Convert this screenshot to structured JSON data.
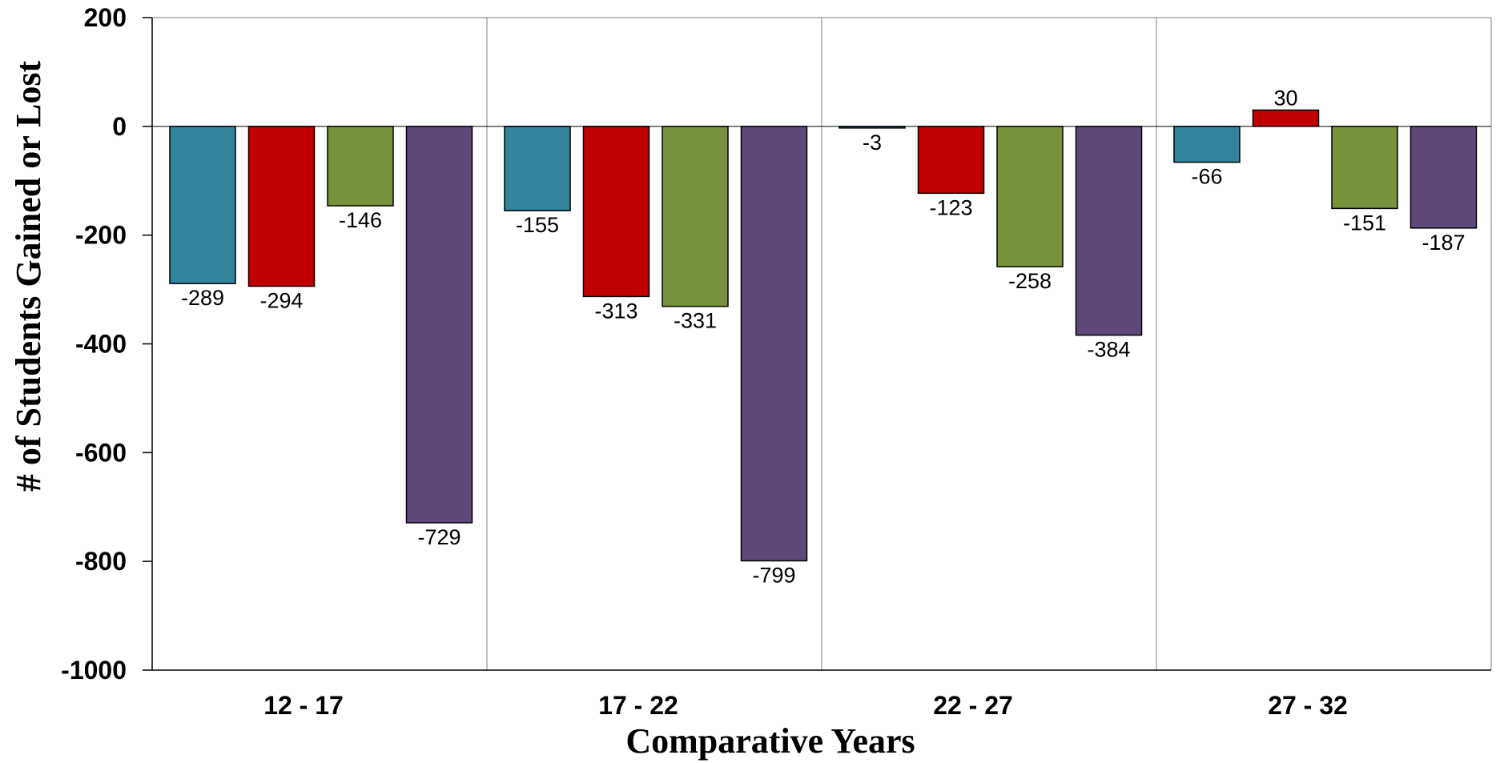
{
  "chart_data": {
    "type": "bar",
    "title": "",
    "xlabel": "Comparative Years",
    "ylabel": "# of Students Gained or Lost",
    "categories": [
      "12 - 17",
      "17 - 22",
      "22 - 27",
      "27 - 32"
    ],
    "ylim": [
      -1000,
      200
    ],
    "yticks": [
      200,
      0,
      -200,
      -400,
      -600,
      -800,
      -1000
    ],
    "grid": "vertical category separators",
    "legend": "none",
    "series": [
      {
        "values": [
          -289,
          -155,
          -3,
          -66
        ],
        "color": "#31849B"
      },
      {
        "values": [
          -294,
          -313,
          -123,
          30
        ],
        "color": "#C00000"
      },
      {
        "values": [
          -146,
          -331,
          -258,
          -151
        ],
        "color": "#76923C"
      },
      {
        "values": [
          -729,
          -799,
          -384,
          -187
        ],
        "color": "#5F497A"
      }
    ]
  }
}
